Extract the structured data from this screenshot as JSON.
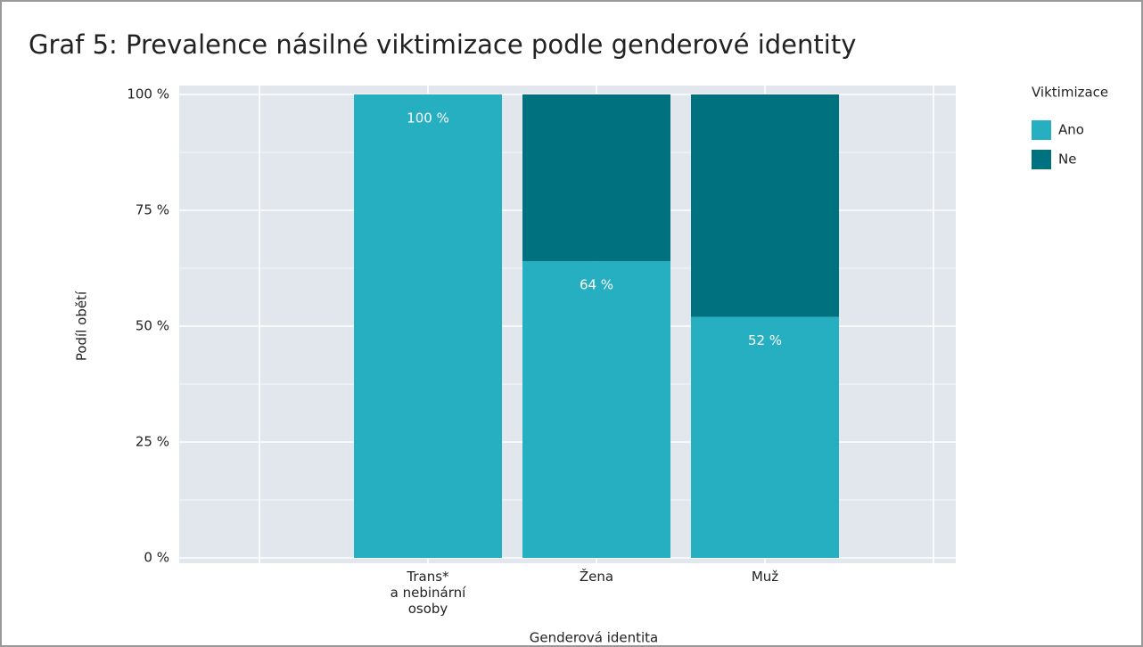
{
  "chart_data": {
    "type": "stacked-bar",
    "title": "Graf 5: Prevalence násilné viktimizace podle genderové identity",
    "x_label": "Genderová identita",
    "y_label": "Podíl obětí",
    "categories": [
      null,
      "Trans*\na nebinární\nosoby",
      "Žena",
      "Muž",
      null
    ],
    "series": [
      {
        "name": "Ano",
        "color": "#26afc1",
        "values": [
          null,
          100,
          64,
          52,
          null
        ],
        "value_labels": [
          null,
          "100 %",
          "64 %",
          "52 %",
          null
        ]
      },
      {
        "name": "Ne",
        "color": "#00717f",
        "values": [
          null,
          0,
          36,
          48,
          null
        ]
      }
    ],
    "legend_title": "Viktimizace",
    "legend": "right",
    "ylim": [
      0,
      100
    ],
    "yticks": [
      {
        "value": 0,
        "label": "0 %"
      },
      {
        "value": 25,
        "label": "25 %"
      },
      {
        "value": 50,
        "label": "50 %"
      },
      {
        "value": 75,
        "label": "75 %"
      },
      {
        "value": 100,
        "label": "100 %"
      }
    ],
    "grid": true
  }
}
